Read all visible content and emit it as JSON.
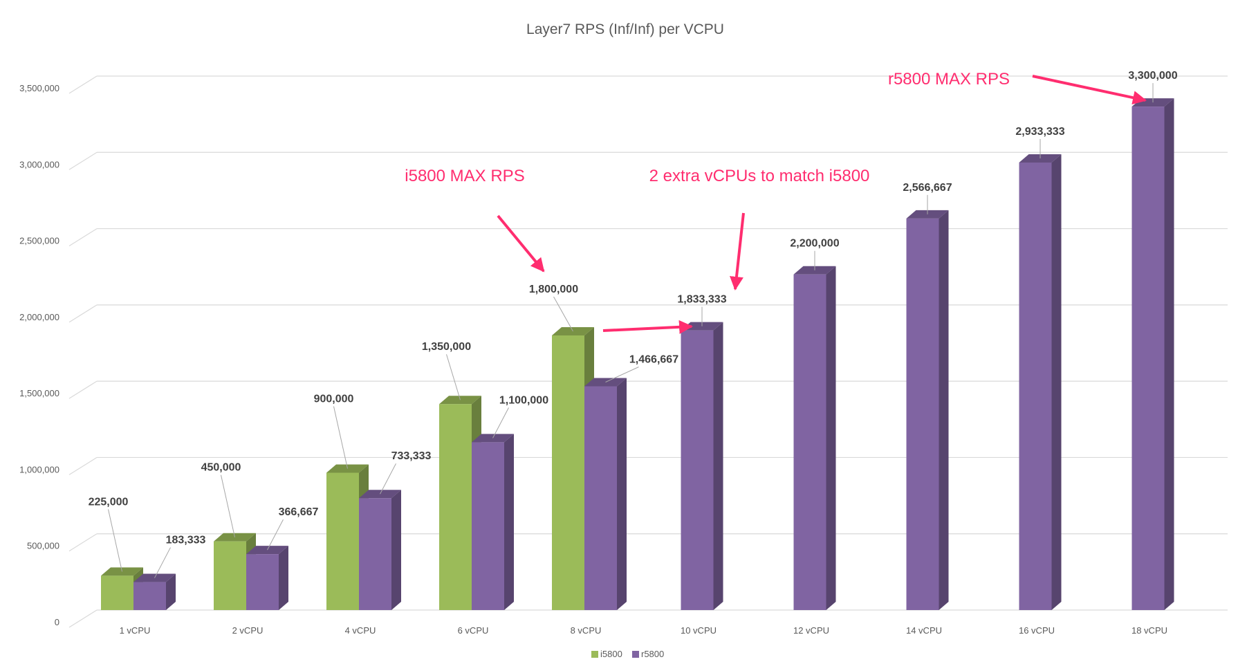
{
  "chart_data": {
    "type": "bar",
    "title": "Layer7 RPS (Inf/Inf) per VCPU",
    "xlabel": "",
    "ylabel": "",
    "ylim": [
      0,
      3500000
    ],
    "y_ticks": [
      "0",
      "500,000",
      "1,000,000",
      "1,500,000",
      "2,000,000",
      "2,500,000",
      "3,000,000",
      "3,500,000"
    ],
    "grid": true,
    "legend_position": "bottom",
    "categories": [
      "1 vCPU",
      "2 vCPU",
      "4 vCPU",
      "6 vCPU",
      "8 vCPU",
      "10 vCPU",
      "12 vCPU",
      "14 vCPU",
      "16 vCPU",
      "18 vCPU"
    ],
    "series": [
      {
        "name": "i5800",
        "color": "#9bbb59",
        "values": [
          225000,
          450000,
          900000,
          1350000,
          1800000,
          null,
          null,
          null,
          null,
          null
        ],
        "labels": [
          "225,000",
          "450,000",
          "900,000",
          "1,350,000",
          "1,800,000",
          "",
          "",
          "",
          "",
          ""
        ]
      },
      {
        "name": "r5800",
        "color": "#8064a2",
        "values": [
          183333,
          366667,
          733333,
          1100000,
          1466667,
          1833333,
          2200000,
          2566667,
          2933333,
          3300000
        ],
        "labels": [
          "183,333",
          "366,667",
          "733,333",
          "1,100,000",
          "1,466,667",
          "1,833,333",
          "2,200,000",
          "2,566,667",
          "2,933,333",
          "3,300,000"
        ]
      }
    ],
    "annotations": [
      {
        "text": "i5800 MAX RPS",
        "target_category": "8 vCPU",
        "target_series": "i5800"
      },
      {
        "text": "2 extra vCPUs to match i5800",
        "target_category": "10 vCPU",
        "target_series": "r5800"
      },
      {
        "text": "r5800 MAX RPS",
        "target_category": "18 vCPU",
        "target_series": "r5800"
      }
    ],
    "annotation_color": "#ff2d6f"
  }
}
